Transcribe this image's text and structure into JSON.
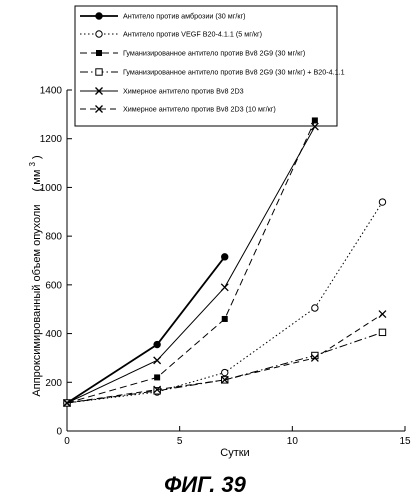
{
  "chart_data": {
    "type": "line",
    "title": "",
    "xlabel": "Сутки",
    "ylabel": "Аппроксимированный объем опухоли",
    "ylabel_unit_base": "( мм",
    "ylabel_unit_exp": "3",
    "ylabel_unit_close": ")",
    "xlim": [
      0,
      15
    ],
    "ylim": [
      0,
      1400
    ],
    "xticks": [
      0,
      5,
      10,
      15
    ],
    "yticks": [
      0,
      200,
      400,
      600,
      800,
      1000,
      1200,
      1400
    ],
    "grid": false,
    "legend_position": "top",
    "series": [
      {
        "name": "Антитело против амброзии (30 мг/кг)",
        "marker": "filled-circle",
        "dash": "solid",
        "bold": true,
        "x": [
          0,
          4,
          7
        ],
        "y": [
          115,
          355,
          715
        ]
      },
      {
        "name": "Антитело против VEGF B20-4.1.1 (5 мг/кг)",
        "marker": "open-circle",
        "dash": "dotted",
        "x": [
          0,
          4,
          7,
          11,
          14
        ],
        "y": [
          115,
          160,
          240,
          505,
          940
        ]
      },
      {
        "name": "Гуманизированное антитело против Bv8 2G9 (30 мг/кг)",
        "marker": "filled-square",
        "dash": "dashed",
        "x": [
          0,
          4,
          7,
          11
        ],
        "y": [
          115,
          220,
          460,
          1275
        ]
      },
      {
        "name": "Гуманизированное антитело против Bv8 2G9 (30 мг/кг) + B20-4.1.1",
        "marker": "open-square",
        "dash": "dashdot",
        "x": [
          0,
          4,
          7,
          11,
          14
        ],
        "y": [
          115,
          165,
          210,
          310,
          405
        ]
      },
      {
        "name": "Химерное антитело против Bv8 2D3",
        "marker": "x",
        "dash": "solid",
        "x": [
          0,
          4,
          7,
          11
        ],
        "y": [
          115,
          290,
          590,
          1250
        ]
      },
      {
        "name": "Химерное антитело против Bv8 2D3 (10 мг/кг)",
        "marker": "x",
        "dash": "longdash",
        "x": [
          0,
          4,
          7,
          11,
          14
        ],
        "y": [
          115,
          170,
          210,
          300,
          480
        ]
      }
    ]
  },
  "caption": "ФИГ. 39"
}
